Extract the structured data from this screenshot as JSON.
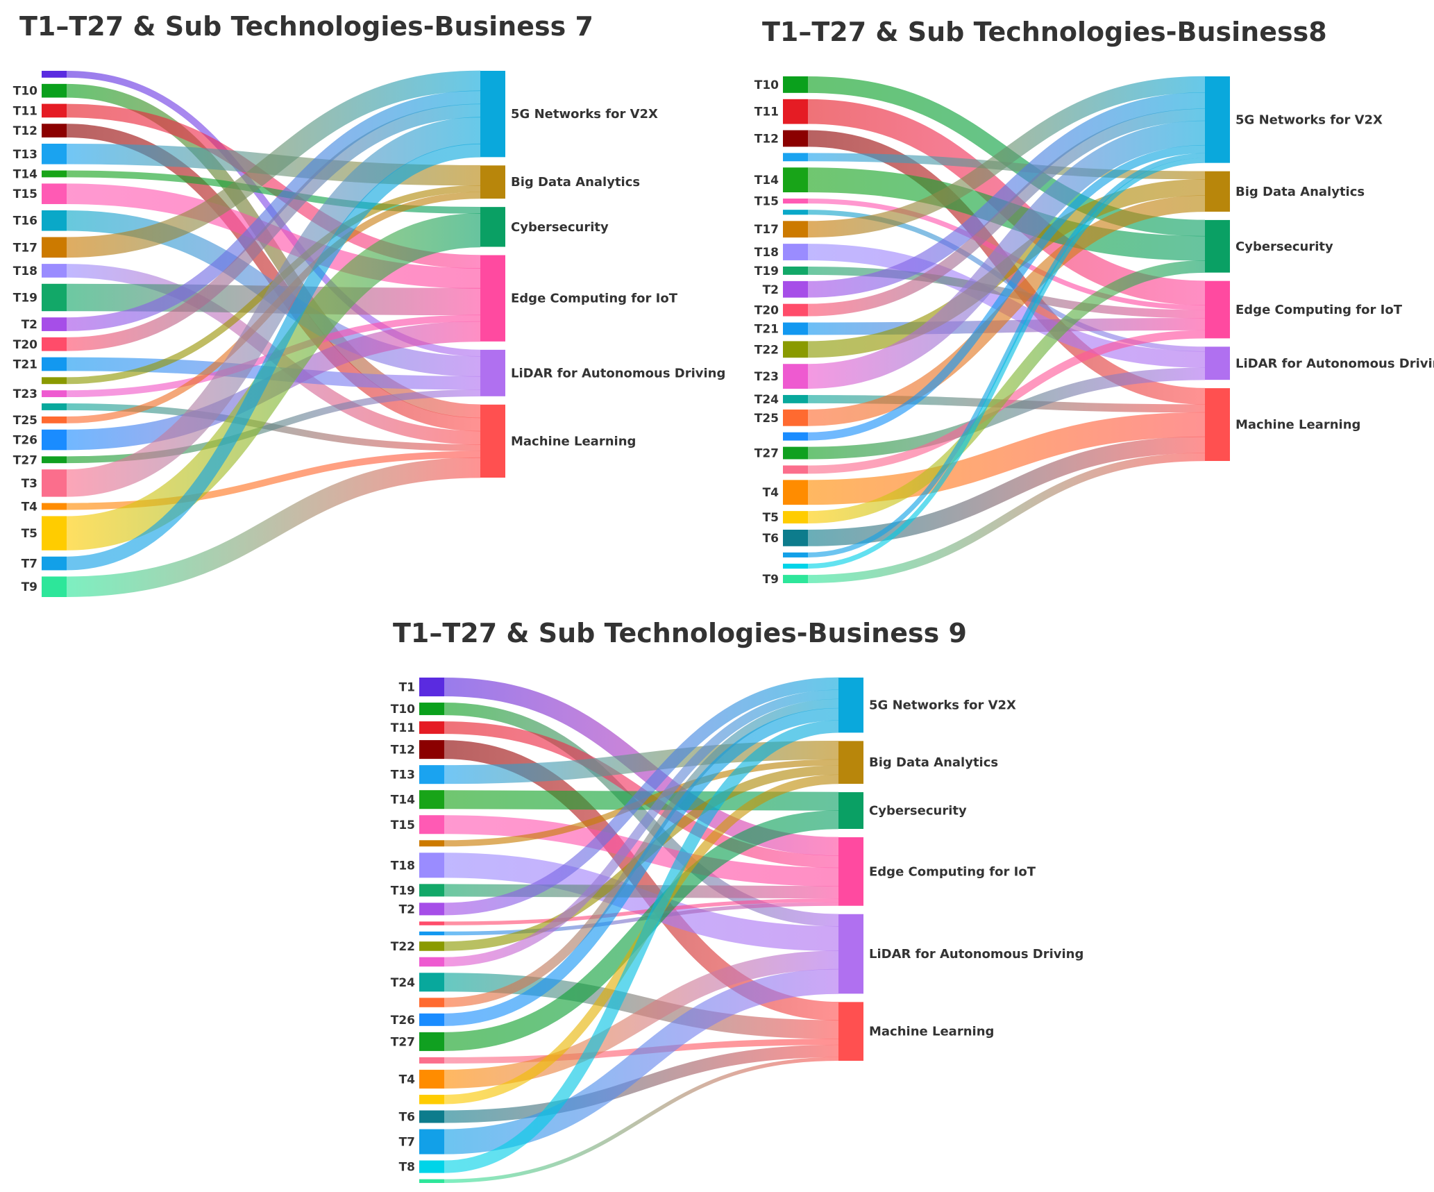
{
  "colors": {
    "T1": "#5a2be0",
    "T2": "#a64ee8",
    "T3": "#fb6e8c",
    "T4": "#ff8c00",
    "T5": "#ffcc00",
    "T6": "#0d7c8c",
    "T7": "#12a0e8",
    "T8": "#00d4e8",
    "T9": "#2de69a",
    "T10": "#0aa01c",
    "T11": "#e51c24",
    "T12": "#8b0000",
    "T13": "#1aa3f0",
    "T14": "#18a418",
    "T15": "#ff5ab4",
    "T16": "#0aa8c8",
    "T17": "#cc7a00",
    "T18": "#9a8cff",
    "T19": "#12a868",
    "T20": "#ff4c6a",
    "T21": "#1298f0",
    "T22": "#8a9a00",
    "T23": "#ee5ad0",
    "T24": "#08a89c",
    "T25": "#ff6a30",
    "T26": "#1a8cff",
    "T27": "#10a020",
    "5G Networks for V2X": "#0aa8dc",
    "Big Data Analytics": "#b8860b",
    "Cybersecurity": "#0aa064",
    "Edge Computing for IoT": "#ff4aa0",
    "LiDAR for Autonomous Driving": "#b070f0",
    "Machine Learning": "#ff5050"
  },
  "panels": [
    {
      "title": "T1–T27 & Sub Technologies-Business 7",
      "nodes": [
        {
          "id": "T1",
          "label": "",
          "value": 1
        },
        {
          "id": "T10",
          "label": "T10",
          "value": 2
        },
        {
          "id": "T11",
          "label": "T11",
          "value": 2
        },
        {
          "id": "T12",
          "label": "T12",
          "value": 2
        },
        {
          "id": "T13",
          "label": "T13",
          "value": 3
        },
        {
          "id": "T14",
          "label": "T14",
          "value": 1
        },
        {
          "id": "T15",
          "label": "T15",
          "value": 3
        },
        {
          "id": "T16",
          "label": "T16",
          "value": 3
        },
        {
          "id": "T17",
          "label": "T17",
          "value": 3
        },
        {
          "id": "T18",
          "label": "T18",
          "value": 2
        },
        {
          "id": "T19",
          "label": "T19",
          "value": 4
        },
        {
          "id": "T2",
          "label": "T2",
          "value": 2
        },
        {
          "id": "T20",
          "label": "T20",
          "value": 2
        },
        {
          "id": "T21",
          "label": "T21",
          "value": 2
        },
        {
          "id": "T22",
          "label": "",
          "value": 1
        },
        {
          "id": "T23",
          "label": "T23",
          "value": 1
        },
        {
          "id": "T24",
          "label": "",
          "value": 1
        },
        {
          "id": "T25",
          "label": "T25",
          "value": 1
        },
        {
          "id": "T26",
          "label": "T26",
          "value": 3
        },
        {
          "id": "T27",
          "label": "T27",
          "value": 1
        },
        {
          "id": "T3",
          "label": "T3",
          "value": 4
        },
        {
          "id": "T4",
          "label": "T4",
          "value": 1
        },
        {
          "id": "T5",
          "label": "T5",
          "value": 5
        },
        {
          "id": "T7",
          "label": "T7",
          "value": 2
        },
        {
          "id": "T9",
          "label": "T9",
          "value": 3
        }
      ],
      "targets": [
        {
          "id": "5G Networks for V2X",
          "label": "5G Networks for V2X"
        },
        {
          "id": "Big Data Analytics",
          "label": "Big Data Analytics"
        },
        {
          "id": "Cybersecurity",
          "label": "Cybersecurity"
        },
        {
          "id": "Edge Computing for IoT",
          "label": "Edge Computing for IoT"
        },
        {
          "id": "LiDAR for Autonomous Driving",
          "label": "LiDAR for Autonomous Driving"
        },
        {
          "id": "Machine Learning",
          "label": "Machine Learning"
        }
      ],
      "links": [
        [
          "T1",
          "LiDAR for Autonomous Driving",
          1
        ],
        [
          "T10",
          "Machine Learning",
          2
        ],
        [
          "T11",
          "Edge Computing for IoT",
          2
        ],
        [
          "T12",
          "Machine Learning",
          2
        ],
        [
          "T13",
          "Big Data Analytics",
          3
        ],
        [
          "T14",
          "Cybersecurity",
          1
        ],
        [
          "T15",
          "Edge Computing for IoT",
          3
        ],
        [
          "T16",
          "LiDAR for Autonomous Driving",
          3
        ],
        [
          "T17",
          "5G Networks for V2X",
          3
        ],
        [
          "T18",
          "Machine Learning",
          2
        ],
        [
          "T19",
          "Edge Computing for IoT",
          4
        ],
        [
          "T2",
          "5G Networks for V2X",
          2
        ],
        [
          "T20",
          "5G Networks for V2X",
          2
        ],
        [
          "T21",
          "LiDAR for Autonomous Driving",
          2
        ],
        [
          "T22",
          "Big Data Analytics",
          1
        ],
        [
          "T23",
          "Edge Computing for IoT",
          1
        ],
        [
          "T24",
          "Machine Learning",
          1
        ],
        [
          "T25",
          "Big Data Analytics",
          1
        ],
        [
          "T26",
          "Edge Computing for IoT",
          3
        ],
        [
          "T27",
          "LiDAR for Autonomous Driving",
          1
        ],
        [
          "T3",
          "5G Networks for V2X",
          4
        ],
        [
          "T4",
          "Machine Learning",
          1
        ],
        [
          "T5",
          "Cybersecurity",
          5
        ],
        [
          "T7",
          "5G Networks for V2X",
          2
        ],
        [
          "T9",
          "Machine Learning",
          3
        ]
      ]
    },
    {
      "title": "T1–T27 & Sub Technologies-Business8",
      "nodes": [
        {
          "id": "T10",
          "label": "T10",
          "value": 2
        },
        {
          "id": "T11",
          "label": "T11",
          "value": 3
        },
        {
          "id": "T12",
          "label": "T12",
          "value": 2
        },
        {
          "id": "T13",
          "label": "",
          "value": 1
        },
        {
          "id": "T14",
          "label": "T14",
          "value": 3
        },
        {
          "id": "T15",
          "label": "T15",
          "value": 0.6
        },
        {
          "id": "T16",
          "label": "",
          "value": 0.6
        },
        {
          "id": "T17",
          "label": "T17",
          "value": 2
        },
        {
          "id": "T18",
          "label": "T18",
          "value": 2
        },
        {
          "id": "T19",
          "label": "T19",
          "value": 1
        },
        {
          "id": "T2",
          "label": "T2",
          "value": 2
        },
        {
          "id": "T20",
          "label": "T20",
          "value": 1.5
        },
        {
          "id": "T21",
          "label": "T21",
          "value": 1.5
        },
        {
          "id": "T22",
          "label": "T22",
          "value": 2
        },
        {
          "id": "T23",
          "label": "T23",
          "value": 3
        },
        {
          "id": "T24",
          "label": "T24",
          "value": 1
        },
        {
          "id": "T25",
          "label": "T25",
          "value": 2
        },
        {
          "id": "T26",
          "label": "",
          "value": 1
        },
        {
          "id": "T27",
          "label": "T27",
          "value": 1.5
        },
        {
          "id": "T3",
          "label": "",
          "value": 1
        },
        {
          "id": "T4",
          "label": "T4",
          "value": 3
        },
        {
          "id": "T5",
          "label": "T5",
          "value": 1.5
        },
        {
          "id": "T6",
          "label": "T6",
          "value": 2
        },
        {
          "id": "T7",
          "label": "",
          "value": 0.6
        },
        {
          "id": "T8",
          "label": "",
          "value": 0.6
        },
        {
          "id": "T9",
          "label": "T9",
          "value": 1
        }
      ],
      "targets": [
        {
          "id": "5G Networks for V2X",
          "label": "5G Networks for V2X"
        },
        {
          "id": "Big Data Analytics",
          "label": "Big Data Analytics"
        },
        {
          "id": "Cybersecurity",
          "label": "Cybersecurity"
        },
        {
          "id": "Edge Computing for IoT",
          "label": "Edge Computing for IoT"
        },
        {
          "id": "LiDAR for Autonomous Driving",
          "label": "LiDAR for Autonomous Driving"
        },
        {
          "id": "Machine Learning",
          "label": "Machine Learning"
        }
      ],
      "links": [
        [
          "T10",
          "Cybersecurity",
          2
        ],
        [
          "T11",
          "Edge Computing for IoT",
          3
        ],
        [
          "T12",
          "Machine Learning",
          2
        ],
        [
          "T13",
          "Big Data Analytics",
          1
        ],
        [
          "T14",
          "Cybersecurity",
          3
        ],
        [
          "T15",
          "Edge Computing for IoT",
          0.6
        ],
        [
          "T16",
          "LiDAR for Autonomous Driving",
          0.6
        ],
        [
          "T17",
          "5G Networks for V2X",
          2
        ],
        [
          "T18",
          "LiDAR for Autonomous Driving",
          2
        ],
        [
          "T19",
          "Edge Computing for IoT",
          1
        ],
        [
          "T2",
          "5G Networks for V2X",
          2
        ],
        [
          "T20",
          "5G Networks for V2X",
          1.5
        ],
        [
          "T21",
          "Edge Computing for IoT",
          1.5
        ],
        [
          "T22",
          "Big Data Analytics",
          2
        ],
        [
          "T23",
          "5G Networks for V2X",
          3
        ],
        [
          "T24",
          "Machine Learning",
          1
        ],
        [
          "T25",
          "Big Data Analytics",
          2
        ],
        [
          "T26",
          "5G Networks for V2X",
          1
        ],
        [
          "T27",
          "LiDAR for Autonomous Driving",
          1.5
        ],
        [
          "T3",
          "Edge Computing for IoT",
          1
        ],
        [
          "T4",
          "Machine Learning",
          3
        ],
        [
          "T5",
          "Cybersecurity",
          1.5
        ],
        [
          "T6",
          "Machine Learning",
          2
        ],
        [
          "T7",
          "5G Networks for V2X",
          0.6
        ],
        [
          "T8",
          "5G Networks for V2X",
          0.6
        ],
        [
          "T9",
          "Machine Learning",
          1
        ]
      ]
    },
    {
      "title": "T1–T27 & Sub Technologies-Business 9",
      "nodes": [
        {
          "id": "T1",
          "label": "T1",
          "value": 3
        },
        {
          "id": "T10",
          "label": "T10",
          "value": 2
        },
        {
          "id": "T11",
          "label": "T11",
          "value": 2
        },
        {
          "id": "T12",
          "label": "T12",
          "value": 3
        },
        {
          "id": "T13",
          "label": "T13",
          "value": 3
        },
        {
          "id": "T14",
          "label": "T14",
          "value": 3
        },
        {
          "id": "T15",
          "label": "T15",
          "value": 3
        },
        {
          "id": "T17",
          "label": "",
          "value": 1
        },
        {
          "id": "T18",
          "label": "T18",
          "value": 4
        },
        {
          "id": "T19",
          "label": "T19",
          "value": 2
        },
        {
          "id": "T2",
          "label": "T2",
          "value": 2
        },
        {
          "id": "T20",
          "label": "",
          "value": 0.6
        },
        {
          "id": "T21",
          "label": "",
          "value": 0.6
        },
        {
          "id": "T22",
          "label": "T22",
          "value": 1.5
        },
        {
          "id": "T23",
          "label": "",
          "value": 1.5
        },
        {
          "id": "T24",
          "label": "T24",
          "value": 3
        },
        {
          "id": "T25",
          "label": "",
          "value": 1.5
        },
        {
          "id": "T26",
          "label": "T26",
          "value": 2
        },
        {
          "id": "T27",
          "label": "T27",
          "value": 3
        },
        {
          "id": "T3",
          "label": "",
          "value": 1
        },
        {
          "id": "T4",
          "label": "T4",
          "value": 3
        },
        {
          "id": "T5",
          "label": "",
          "value": 1.5
        },
        {
          "id": "T6",
          "label": "T6",
          "value": 2
        },
        {
          "id": "T7",
          "label": "T7",
          "value": 4
        },
        {
          "id": "T8",
          "label": "T8",
          "value": 2
        },
        {
          "id": "T9",
          "label": "",
          "value": 0.6
        }
      ],
      "targets": [
        {
          "id": "5G Networks for V2X",
          "label": "5G Networks for V2X"
        },
        {
          "id": "Big Data Analytics",
          "label": "Big Data Analytics"
        },
        {
          "id": "Cybersecurity",
          "label": "Cybersecurity"
        },
        {
          "id": "Edge Computing for IoT",
          "label": "Edge Computing for IoT"
        },
        {
          "id": "LiDAR for Autonomous Driving",
          "label": "LiDAR for Autonomous Driving"
        },
        {
          "id": "Machine Learning",
          "label": "Machine Learning"
        }
      ],
      "links": [
        [
          "T1",
          "Edge Computing for IoT",
          3
        ],
        [
          "T10",
          "LiDAR for Autonomous Driving",
          2
        ],
        [
          "T11",
          "Edge Computing for IoT",
          2
        ],
        [
          "T12",
          "Machine Learning",
          3
        ],
        [
          "T13",
          "Big Data Analytics",
          3
        ],
        [
          "T14",
          "Cybersecurity",
          3
        ],
        [
          "T15",
          "Edge Computing for IoT",
          3
        ],
        [
          "T17",
          "Big Data Analytics",
          1
        ],
        [
          "T18",
          "LiDAR for Autonomous Driving",
          4
        ],
        [
          "T19",
          "Edge Computing for IoT",
          2
        ],
        [
          "T2",
          "5G Networks for V2X",
          2
        ],
        [
          "T20",
          "Edge Computing for IoT",
          0.6
        ],
        [
          "T21",
          "Edge Computing for IoT",
          0.6
        ],
        [
          "T22",
          "Big Data Analytics",
          1.5
        ],
        [
          "T23",
          "5G Networks for V2X",
          1.5
        ],
        [
          "T24",
          "Machine Learning",
          3
        ],
        [
          "T25",
          "5G Networks for V2X",
          1.5
        ],
        [
          "T26",
          "5G Networks for V2X",
          2
        ],
        [
          "T27",
          "Cybersecurity",
          3
        ],
        [
          "T3",
          "Machine Learning",
          1
        ],
        [
          "T4",
          "LiDAR for Autonomous Driving",
          3
        ],
        [
          "T5",
          "Big Data Analytics",
          1.5
        ],
        [
          "T6",
          "Machine Learning",
          2
        ],
        [
          "T7",
          "LiDAR for Autonomous Driving",
          4
        ],
        [
          "T8",
          "5G Networks for V2X",
          2
        ],
        [
          "T9",
          "Machine Learning",
          0.6
        ]
      ]
    }
  ]
}
